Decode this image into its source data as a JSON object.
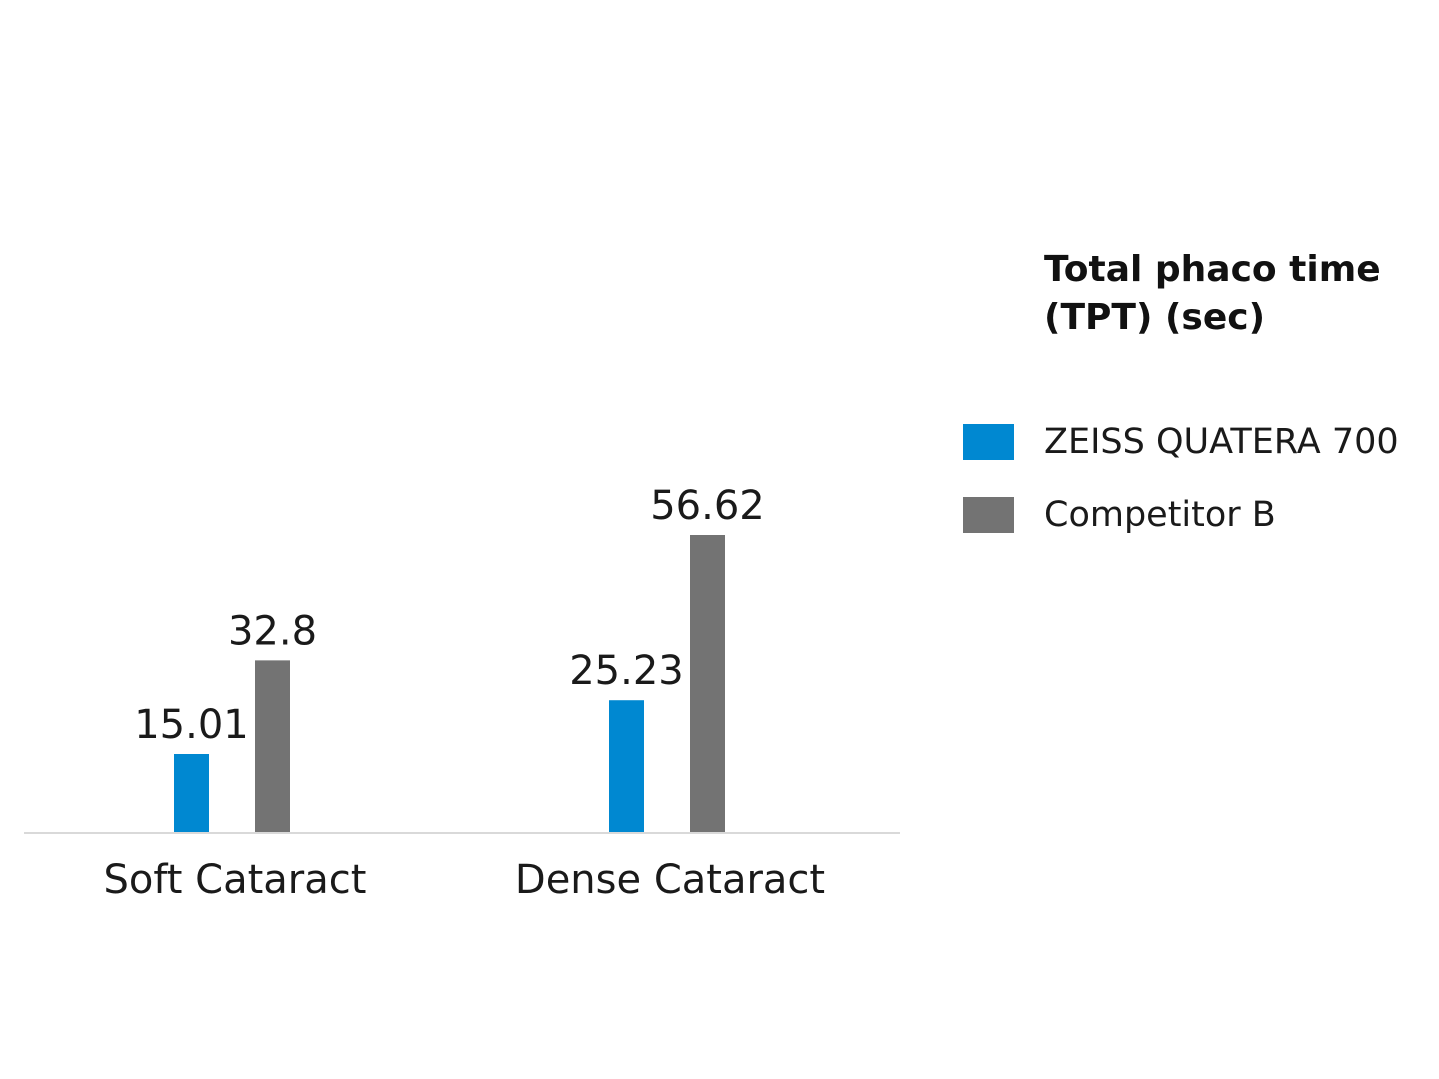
{
  "chart_data": {
    "type": "bar",
    "title": "Total phaco time\n(TPT) (sec)",
    "categories": [
      "Soft Cataract",
      "Dense Cataract"
    ],
    "series": [
      {
        "name": "ZEISS QUATERA 700",
        "values": [
          15.01,
          25.23
        ],
        "labels": [
          "15.01",
          "25.23"
        ],
        "color": "#0088d1"
      },
      {
        "name": "Competitor B",
        "values": [
          32.8,
          56.62
        ],
        "labels": [
          "32.8",
          "56.62"
        ],
        "color": "#737373"
      }
    ],
    "xlabel": "",
    "ylabel": "",
    "ylim": [
      0,
      56.62
    ],
    "grid": false,
    "axis_color": "#d9d9d9",
    "legend_position": "right"
  }
}
